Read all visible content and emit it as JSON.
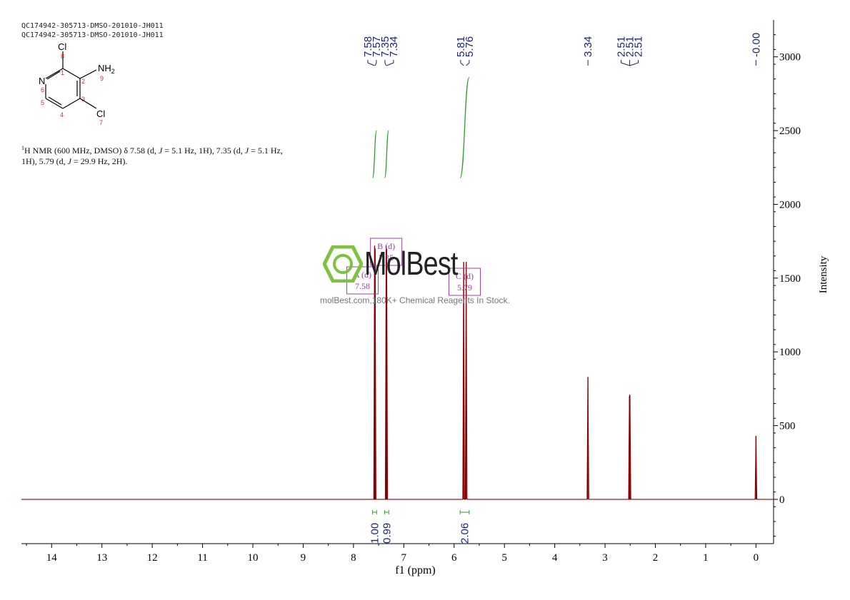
{
  "header": {
    "line1": "QC174942-305713-DMSO-201010-JH011",
    "line2": "QC174942-305713-DMSO-201010-JH011"
  },
  "structure": {
    "atoms": {
      "cl_top": "Cl",
      "nh2": "NH",
      "nh2_sub": "2",
      "n_ring": "N",
      "cl_bottom": "Cl"
    },
    "numbers": [
      "8",
      "1",
      "2",
      "9",
      "6",
      "3",
      "5",
      "4",
      "7"
    ]
  },
  "description": {
    "sup": "1",
    "text_part1": "H NMR (600 MHz, DMSO) δ 7.58 (d, ",
    "j1": "J",
    "text_part2": " = 5.1 Hz, 1H), 7.35 (d, ",
    "j2": "J",
    "text_part3": " = 5.1 Hz, 1H), 5.79 (d, ",
    "j3": "J",
    "text_part4": " = 29.9 Hz, 2H)."
  },
  "watermark": {
    "logo": "MolBest",
    "tagline": "molBest.com,180K+ Chemical Reagents In Stock."
  },
  "colors": {
    "spectrum": "#8b0000",
    "peak_labels": "#1a237e",
    "integral": "#2e9e2e",
    "multiplet": "#9c3fa3",
    "axis": "#000000",
    "logo_green": "#7ec242"
  },
  "chart_data": {
    "type": "line",
    "xlabel": "f1 (ppm)",
    "ylabel": "Intensity",
    "xlim": [
      14.6,
      -0.35
    ],
    "ylim": [
      -300,
      3250
    ],
    "x_ticks": [
      14,
      13,
      12,
      11,
      10,
      9,
      8,
      7,
      6,
      5,
      4,
      3,
      2,
      1,
      0
    ],
    "y_ticks": [
      0,
      500,
      1000,
      1500,
      2000,
      2500,
      3000
    ],
    "peaks": [
      {
        "ppm": 7.58,
        "height": 1720
      },
      {
        "ppm": 7.57,
        "height": 1700
      },
      {
        "ppm": 7.35,
        "height": 1720
      },
      {
        "ppm": 7.34,
        "height": 1700
      },
      {
        "ppm": 5.81,
        "height": 1610
      },
      {
        "ppm": 5.76,
        "height": 1610
      },
      {
        "ppm": 3.34,
        "height": 830
      },
      {
        "ppm": 2.51,
        "height": 710
      },
      {
        "ppm": 2.505,
        "height": 700
      },
      {
        "ppm": 2.515,
        "height": 700
      },
      {
        "ppm": 0.0,
        "height": 430
      }
    ],
    "peak_labels": [
      {
        "group": "g1",
        "labels": [
          "7.58",
          "7.57",
          "7.35",
          "7.34"
        ],
        "ppms": [
          7.58,
          7.57,
          7.35,
          7.34
        ]
      },
      {
        "group": "g2",
        "labels": [
          "5.81",
          "5.76"
        ],
        "ppms": [
          5.81,
          5.76
        ]
      },
      {
        "group": "g3",
        "labels": [
          "3.34"
        ],
        "ppms": [
          3.34
        ]
      },
      {
        "group": "g4",
        "labels": [
          "2.51",
          "2.51",
          "2.51"
        ],
        "ppms": [
          2.51,
          2.51,
          2.51
        ]
      },
      {
        "group": "g5",
        "labels": [
          "-0.00"
        ],
        "ppms": [
          0.0
        ]
      }
    ],
    "integrals": [
      {
        "from": 7.62,
        "to": 7.54,
        "value": "1.00",
        "curve_low": 2180,
        "curve_high": 2500
      },
      {
        "from": 7.38,
        "to": 7.3,
        "value": "0.99",
        "curve_low": 2180,
        "curve_high": 2500
      },
      {
        "from": 5.88,
        "to": 5.7,
        "value": "2.06",
        "curve_low": 2180,
        "curve_high": 2860
      }
    ],
    "multiplets": [
      {
        "name": "B (d)",
        "shift": "7.35",
        "ppm": 7.35
      },
      {
        "name": "A (d)",
        "shift": "7.58",
        "ppm": 7.58
      },
      {
        "name": "C (d)",
        "shift": "5.79",
        "ppm": 5.79
      }
    ]
  }
}
